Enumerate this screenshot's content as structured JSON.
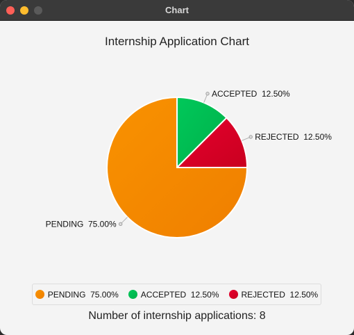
{
  "window": {
    "title": "Chart"
  },
  "colors": {
    "pending": "#f99200",
    "accepted": "#00c85a",
    "rejected": "#e6002e",
    "background": "#f4f4f4"
  },
  "chart_data": {
    "type": "pie",
    "title": "Internship Application Chart",
    "categories": [
      "PENDING",
      "ACCEPTED",
      "REJECTED"
    ],
    "values": [
      75.0,
      12.5,
      12.5
    ],
    "labels": [
      "PENDING  75.00%",
      "ACCEPTED  12.50%",
      "REJECTED  12.50%"
    ],
    "legend_position": "bottom",
    "legend": [
      "PENDING  75.00%",
      "ACCEPTED  12.50%",
      "REJECTED  12.50%"
    ]
  },
  "summary": {
    "text": "Number of internship applications: 8"
  }
}
